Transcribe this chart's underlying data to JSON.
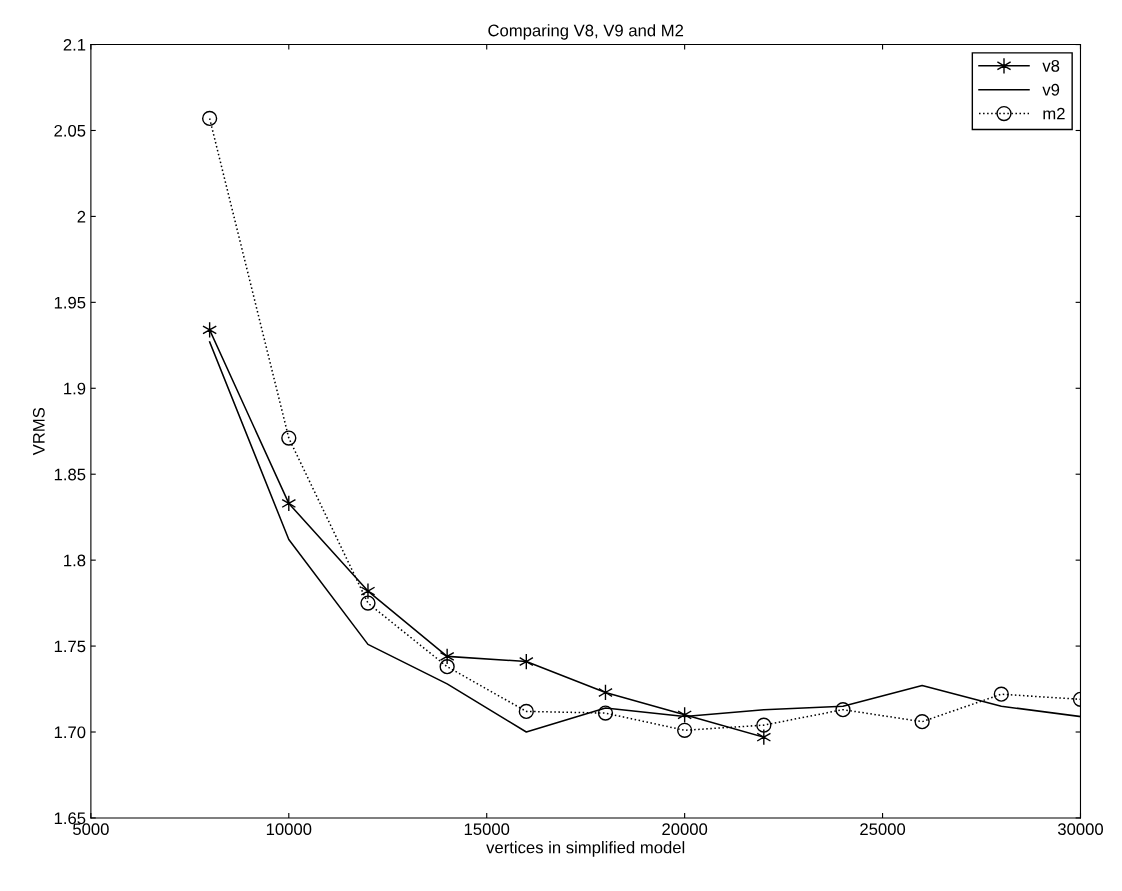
{
  "chart_data": {
    "type": "line",
    "title": "Comparing V8, V9 and M2",
    "xlabel": "vertices in simplified model",
    "ylabel": "VRMS",
    "xlim": [
      5000,
      30000
    ],
    "xticks": [
      5000,
      10000,
      15000,
      20000,
      25000,
      30000
    ],
    "ylim": [
      1.65,
      2.1
    ],
    "yticks": [
      {
        "value": 1.65,
        "label": "1.65"
      },
      {
        "value": 1.7,
        "label": "1.70"
      },
      {
        "value": 1.75,
        "label": "1.75"
      },
      {
        "value": 1.8,
        "label": "1.8"
      },
      {
        "value": 1.85,
        "label": "1.85"
      },
      {
        "value": 1.9,
        "label": "1.9"
      },
      {
        "value": 1.95,
        "label": "1.95"
      },
      {
        "value": 2.0,
        "label": "2"
      },
      {
        "value": 2.05,
        "label": "2.05"
      },
      {
        "value": 2.1,
        "label": "2.1"
      }
    ],
    "grid": false,
    "legend": "top right",
    "series": [
      {
        "name": "v8",
        "color": "#000000",
        "marker": "cross",
        "line_style": "solid",
        "x": [
          8000,
          10000,
          12000,
          14000,
          16000,
          18000,
          20000,
          22000
        ],
        "values": [
          1.934,
          1.833,
          1.782,
          1.744,
          1.741,
          1.723,
          1.71,
          1.697
        ]
      },
      {
        "name": "v9",
        "color": "#000000",
        "marker": "none",
        "line_style": "solid",
        "x": [
          8000,
          10000,
          12000,
          14000,
          16000,
          18000,
          20000,
          22000,
          24000,
          26000,
          28000,
          30000
        ],
        "values": [
          1.927,
          1.812,
          1.751,
          1.728,
          1.7,
          1.714,
          1.709,
          1.713,
          1.715,
          1.727,
          1.715,
          1.709
        ]
      },
      {
        "name": "m2",
        "color": "#000000",
        "marker": "circle",
        "line_style": "dotted",
        "x": [
          8000,
          10000,
          12000,
          14000,
          16000,
          18000,
          20000,
          22000,
          24000,
          26000,
          28000,
          30000
        ],
        "values": [
          2.057,
          1.871,
          1.775,
          1.738,
          1.712,
          1.711,
          1.701,
          1.704,
          1.713,
          1.706,
          1.722,
          1.719
        ]
      }
    ]
  }
}
